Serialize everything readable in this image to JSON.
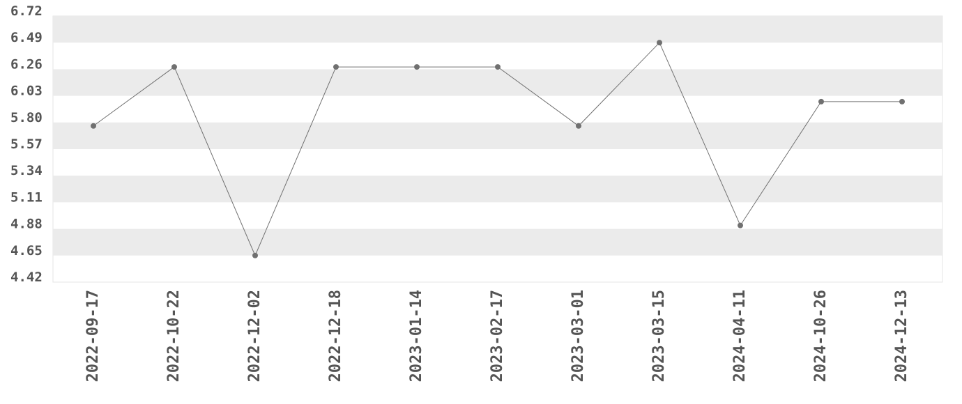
{
  "chart_data": {
    "type": "line",
    "categories": [
      "2022-09-17",
      "2022-10-22",
      "2022-12-02",
      "2022-12-18",
      "2023-01-14",
      "2023-02-17",
      "2023-03-01",
      "2023-03-15",
      "2024-04-11",
      "2024-10-26",
      "2024-12-13"
    ],
    "series": [
      {
        "color": "#707070",
        "values": [
          5.77,
          6.28,
          4.65,
          6.28,
          6.28,
          6.28,
          5.77,
          6.49,
          4.91,
          5.98,
          5.98
        ]
      }
    ],
    "ylim": [
      4.42,
      6.72
    ],
    "yticks": [
      4.42,
      4.65,
      4.88,
      5.11,
      5.34,
      5.57,
      {
        "value": 5.8,
        "label": "5.80"
      },
      6.03,
      6.26,
      6.49,
      6.72
    ],
    "grid": true
  }
}
